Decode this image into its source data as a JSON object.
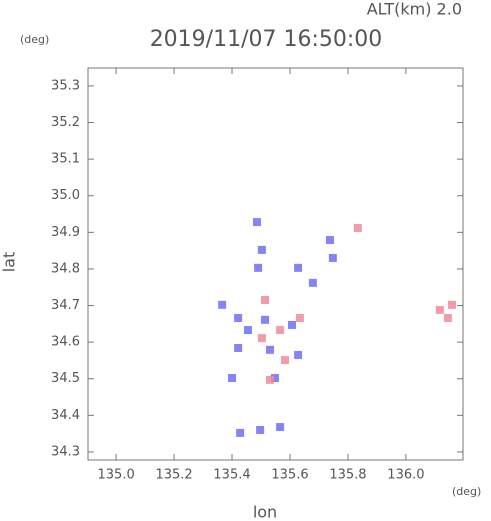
{
  "chart_data": {
    "type": "scatter",
    "title": "2019/11/07 16:50:00",
    "subtitle": "ALT(km) 2.0",
    "x_label": "lon",
    "y_label": "lat",
    "x_unit": "(deg)",
    "y_unit": "(deg)",
    "xlim": [
      134.903,
      136.197
    ],
    "ylim": [
      34.278,
      35.349
    ],
    "xticks": [
      {
        "value": 135,
        "label": "135.0"
      },
      135.2,
      135.4,
      135.6,
      135.8,
      {
        "value": 136,
        "label": "136.0"
      }
    ],
    "yticks": [
      34.3,
      34.4,
      34.5,
      34.6,
      34.7,
      34.8,
      34.9,
      {
        "value": 35,
        "label": "35.0"
      },
      35.1,
      35.2,
      35.3
    ],
    "series": [
      {
        "color": "#6f6ff5",
        "x": [
          135.486,
          135.503,
          135.49,
          135.628,
          135.738,
          135.748,
          135.679,
          135.366,
          135.421,
          135.455,
          135.514,
          135.607,
          135.531,
          135.628,
          135.4,
          135.548,
          135.428,
          135.497,
          135.566,
          135.421
        ],
        "values": [
          34.928,
          34.852,
          34.803,
          34.803,
          34.879,
          34.83,
          34.762,
          34.702,
          34.666,
          34.633,
          34.661,
          34.647,
          34.579,
          34.565,
          34.502,
          34.502,
          34.352,
          34.36,
          34.368,
          34.584
        ]
      },
      {
        "color": "#f08a9a",
        "x": [
          135.834,
          135.514,
          135.566,
          135.634,
          135.583,
          136.117,
          136.145,
          136.159,
          135.531,
          135.503
        ],
        "values": [
          34.912,
          34.715,
          34.633,
          34.666,
          34.551,
          34.688,
          34.666,
          34.702,
          34.497,
          34.611
        ]
      }
    ]
  }
}
